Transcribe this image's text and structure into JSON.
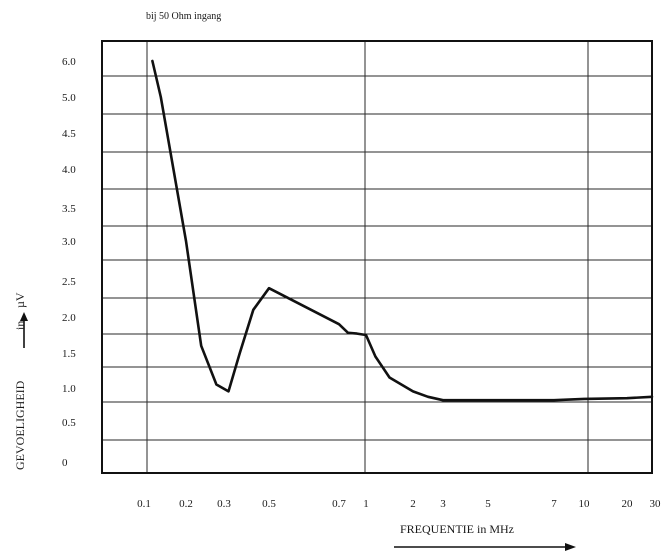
{
  "chart_data": {
    "type": "line",
    "note": "bij 50 Ohm  ingang",
    "xlabel": "FREQUENTIE in MHz",
    "ylabel": "GEVOELIGHEID",
    "yunit_prefix": "in",
    "yunit": "µV",
    "grid": true,
    "x_ticks": [
      "0.1",
      "0.2",
      "0.3",
      "0.5",
      "0.7",
      "1",
      "2",
      "3",
      "5",
      "7",
      "10",
      "20",
      "30"
    ],
    "y_ticks": [
      "0",
      "0.5",
      "1.0",
      "1.5",
      "2.0",
      "2.5",
      "3.0",
      "3.5",
      "4.0",
      "4.5",
      "5.0",
      "6.0"
    ],
    "series": [
      {
        "x": [
          0.12,
          0.14,
          0.17,
          0.2,
          0.24,
          0.28,
          0.32,
          0.37,
          0.43,
          0.5,
          0.6,
          0.7,
          0.8,
          0.9,
          1.0,
          1.2,
          1.5,
          2.0,
          2.5,
          3.0,
          5.0,
          7.0,
          10.0,
          20.0,
          30.0
        ],
        "y": [
          6.0,
          5.0,
          4.0,
          3.0,
          1.6,
          1.05,
          0.95,
          1.5,
          2.1,
          2.4,
          2.15,
          1.9,
          1.78,
          1.77,
          1.75,
          1.45,
          1.15,
          0.95,
          0.87,
          0.82,
          0.82,
          0.82,
          0.84,
          0.85,
          0.87
        ]
      }
    ]
  }
}
